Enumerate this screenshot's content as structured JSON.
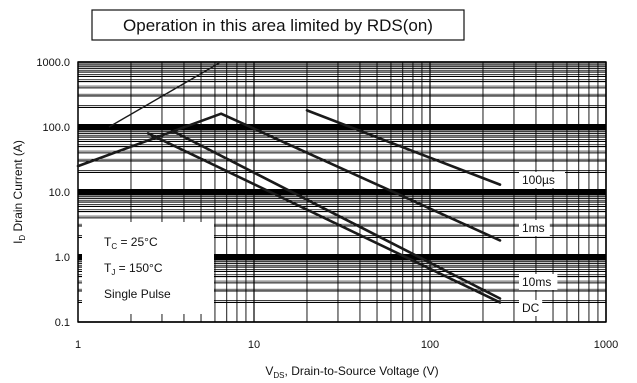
{
  "chart_data": {
    "type": "line",
    "title": "",
    "xlabel_main": "V",
    "xlabel_sub": "DS",
    "xlabel_rest": ", Drain-to-Source Voltage (V)",
    "ylabel_main": "I",
    "ylabel_sub": "D",
    "ylabel_rest": " Drain Current (A)",
    "x_scale": "log",
    "y_scale": "log",
    "xlim": [
      1,
      1000
    ],
    "ylim": [
      0.1,
      1000
    ],
    "x_ticks": [
      {
        "value": 1,
        "label": "1"
      },
      {
        "value": 10,
        "label": "10"
      },
      {
        "value": 100,
        "label": "100"
      },
      {
        "value": 1000,
        "label": "1000"
      }
    ],
    "y_ticks": [
      {
        "value": 1000,
        "label": "1000.0"
      },
      {
        "value": 100,
        "label": "100.0"
      },
      {
        "value": 10,
        "label": "10.0"
      },
      {
        "value": 1,
        "label": "1.0"
      },
      {
        "value": 0.1,
        "label": "0.1"
      }
    ],
    "grid": true,
    "callout": "Operation in this area limited by RDS(on)",
    "conditions": [
      {
        "main": "T",
        "sub": "C",
        "rest": " = 25°C"
      },
      {
        "main": "T",
        "sub": "J",
        "rest": " = 150°C"
      },
      {
        "main": "Single Pulse",
        "sub": "",
        "rest": ""
      }
    ],
    "series": [
      {
        "name": "100µs",
        "x": [
          20,
          250
        ],
        "y": [
          180,
          13
        ]
      },
      {
        "name": "1ms",
        "x": [
          1,
          6.5,
          250
        ],
        "y": [
          25,
          160,
          1.8
        ]
      },
      {
        "name": "10ms",
        "x": [
          3.5,
          250
        ],
        "y": [
          85,
          0.23
        ]
      },
      {
        "name": "DC",
        "x": [
          2.5,
          250
        ],
        "y": [
          80,
          0.2
        ]
      }
    ],
    "rds_line": {
      "x": [
        1.5,
        6.5
      ],
      "y": [
        100,
        1000
      ]
    },
    "colors": {
      "line": "#1a1a1a",
      "grid": "#000000",
      "background": "#ffffff"
    }
  }
}
